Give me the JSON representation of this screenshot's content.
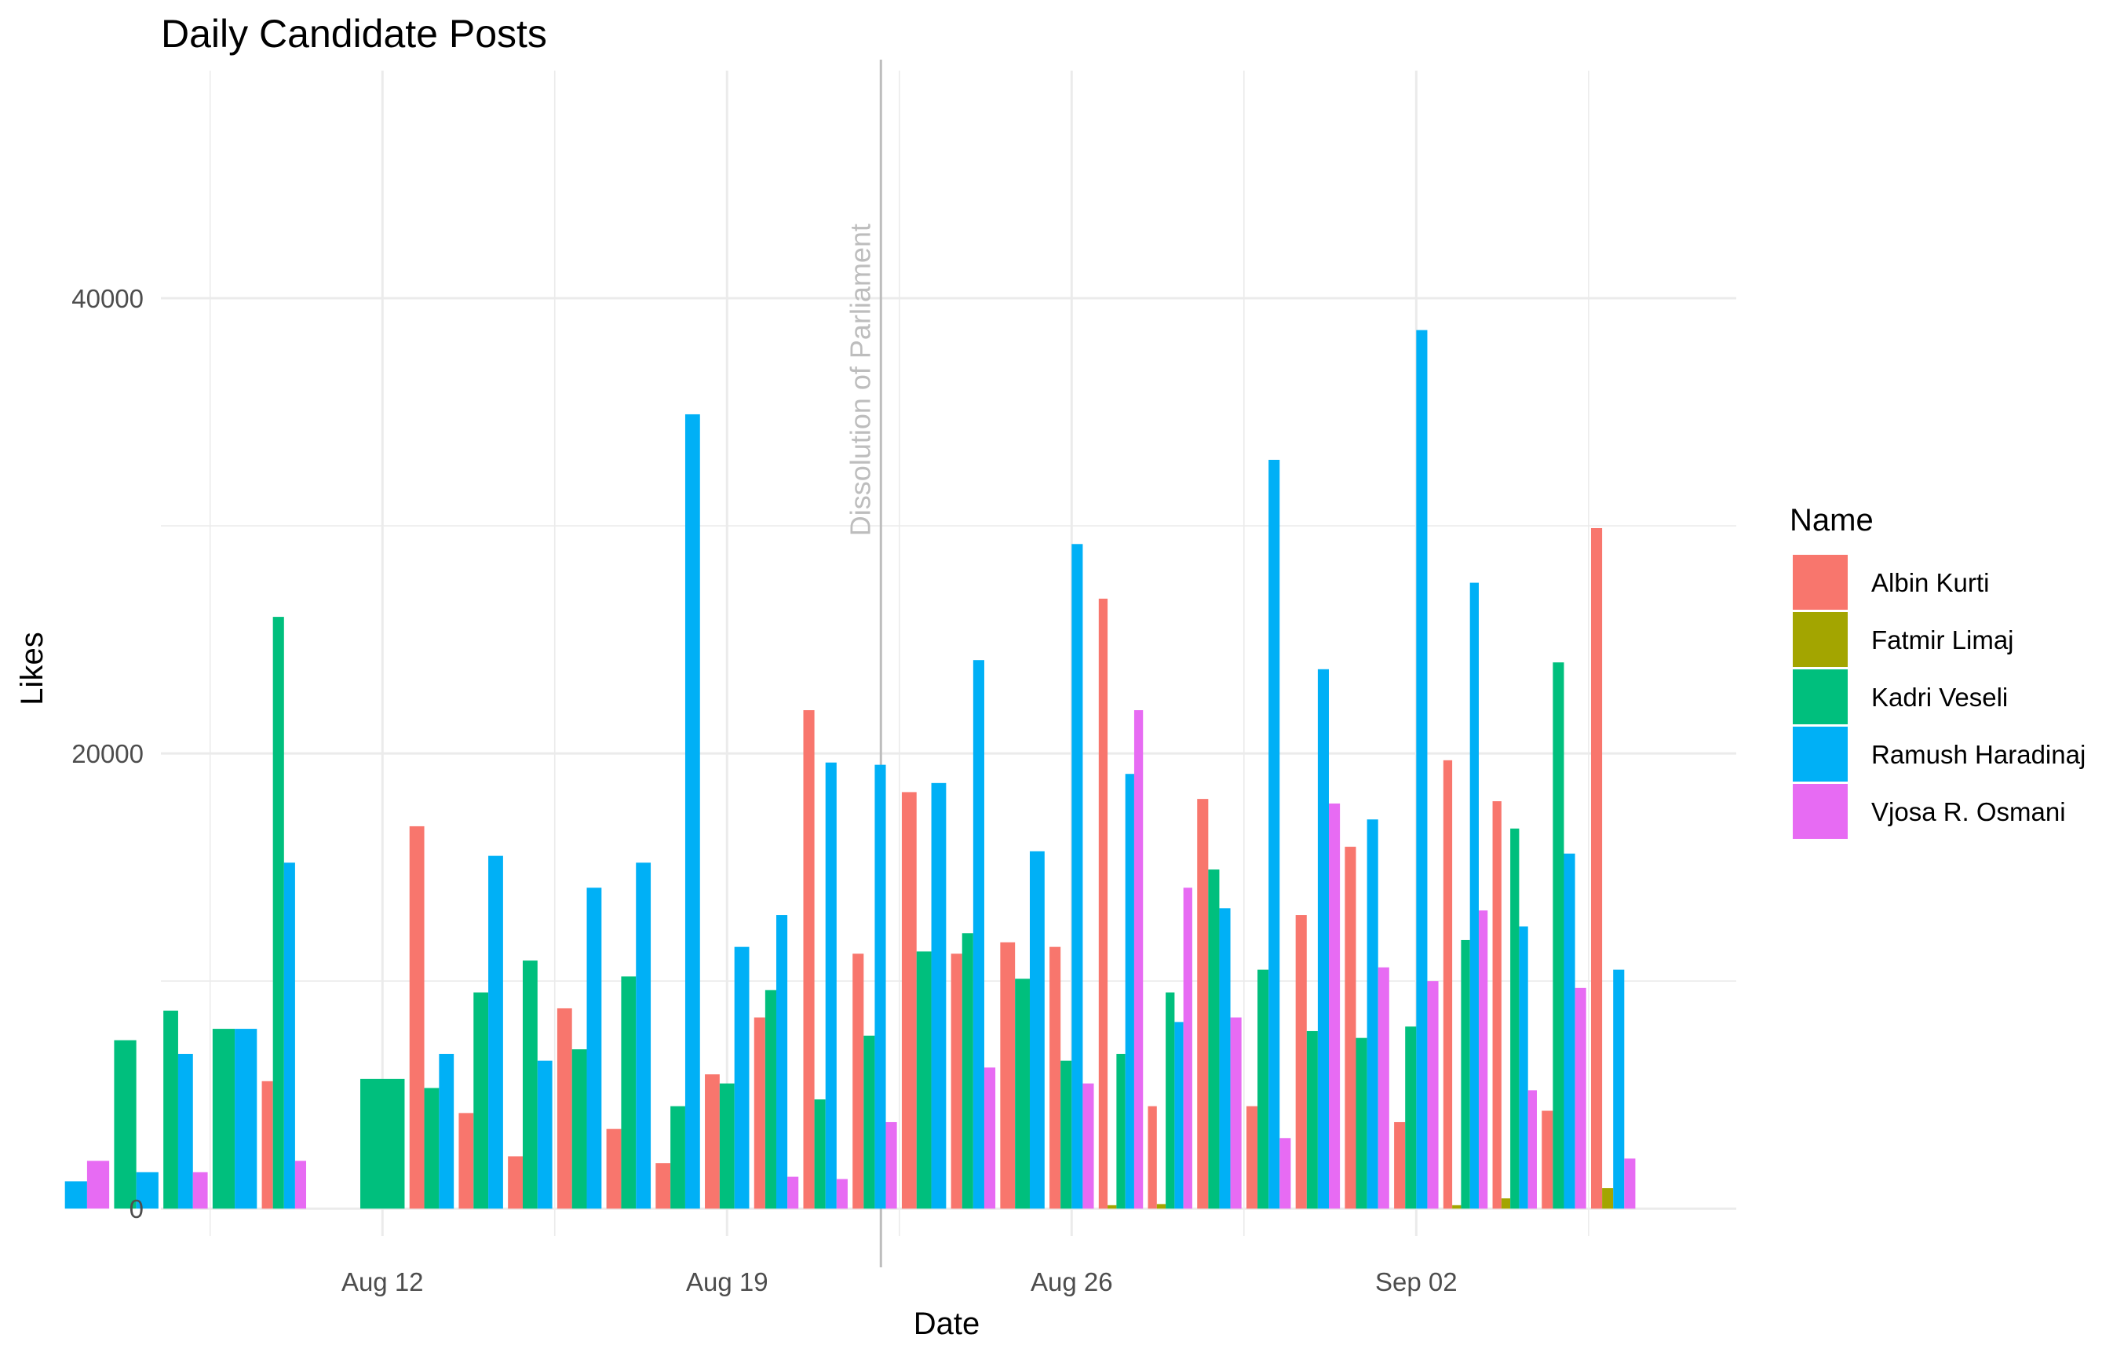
{
  "chart_data": {
    "type": "bar",
    "title": "Daily Candidate Posts",
    "xlabel": "Date",
    "ylabel": "Likes",
    "ylim": [
      -1200,
      50000
    ],
    "x_range": [
      "2019-08-07T12:00",
      "2019-09-08T12:00"
    ],
    "y_ticks": [
      0,
      20000,
      40000
    ],
    "y_tick_labels": [
      "0",
      "20000",
      "40000"
    ],
    "x_ticks": [
      "2019-08-12",
      "2019-08-19",
      "2019-08-26",
      "2019-09-02"
    ],
    "x_tick_labels": [
      "Aug 12",
      "Aug 19",
      "Aug 26",
      "Sep 02"
    ],
    "grid": true,
    "legend": {
      "title": "Name",
      "position": "right"
    },
    "annotation": {
      "text": "Dissolution of Parliament",
      "date": "2019-08-22T03:00"
    },
    "series": [
      {
        "name": "Albin Kurti",
        "color": "#F8766D",
        "points": [
          [
            "2019-08-10",
            5600
          ],
          [
            "2019-08-13",
            16800
          ],
          [
            "2019-08-14",
            4200
          ],
          [
            "2019-08-15",
            2300
          ],
          [
            "2019-08-16",
            8800
          ],
          [
            "2019-08-17",
            3500
          ],
          [
            "2019-08-18",
            2000
          ],
          [
            "2019-08-19",
            5900
          ],
          [
            "2019-08-20",
            8400
          ],
          [
            "2019-08-21",
            21900
          ],
          [
            "2019-08-22",
            11200
          ],
          [
            "2019-08-23",
            18300
          ],
          [
            "2019-08-24",
            11200
          ],
          [
            "2019-08-25",
            11700
          ],
          [
            "2019-08-26",
            11500
          ],
          [
            "2019-08-27",
            26800
          ],
          [
            "2019-08-28",
            4500
          ],
          [
            "2019-08-29",
            18000
          ],
          [
            "2019-08-30",
            4500
          ],
          [
            "2019-08-31",
            12900
          ],
          [
            "2019-09-01",
            15900
          ],
          [
            "2019-09-02",
            3800
          ],
          [
            "2019-09-03",
            19700
          ],
          [
            "2019-09-04",
            17900
          ],
          [
            "2019-09-05",
            4300
          ],
          [
            "2019-09-06",
            29900
          ]
        ]
      },
      {
        "name": "Fatmir Limaj",
        "color": "#A3A500",
        "points": [
          [
            "2019-08-27",
            150
          ],
          [
            "2019-08-28",
            200
          ],
          [
            "2019-09-03",
            150
          ],
          [
            "2019-09-04",
            450
          ],
          [
            "2019-09-06",
            900
          ]
        ]
      },
      {
        "name": "Kadri Veseli",
        "color": "#00BF7D",
        "points": [
          [
            "2019-08-07",
            7400
          ],
          [
            "2019-08-08",
            8700
          ],
          [
            "2019-08-09",
            7900
          ],
          [
            "2019-08-10",
            26000
          ],
          [
            "2019-08-12",
            5700
          ],
          [
            "2019-08-13",
            5300
          ],
          [
            "2019-08-14",
            9500
          ],
          [
            "2019-08-15",
            10900
          ],
          [
            "2019-08-16",
            7000
          ],
          [
            "2019-08-17",
            10200
          ],
          [
            "2019-08-18",
            4500
          ],
          [
            "2019-08-19",
            5500
          ],
          [
            "2019-08-20",
            9600
          ],
          [
            "2019-08-21",
            4800
          ],
          [
            "2019-08-22",
            7600
          ],
          [
            "2019-08-23",
            11300
          ],
          [
            "2019-08-24",
            12100
          ],
          [
            "2019-08-25",
            10100
          ],
          [
            "2019-08-26",
            6500
          ],
          [
            "2019-08-27",
            6800
          ],
          [
            "2019-08-28",
            9500
          ],
          [
            "2019-08-29",
            14900
          ],
          [
            "2019-08-30",
            10500
          ],
          [
            "2019-08-31",
            7800
          ],
          [
            "2019-09-01",
            7500
          ],
          [
            "2019-09-02",
            8000
          ],
          [
            "2019-09-03",
            11800
          ],
          [
            "2019-09-04",
            16700
          ],
          [
            "2019-09-05",
            24000
          ]
        ]
      },
      {
        "name": "Ramush Haradinaj",
        "color": "#00B0F6",
        "points": [
          [
            "2019-08-06",
            1200
          ],
          [
            "2019-08-07",
            1600
          ],
          [
            "2019-08-08",
            6800
          ],
          [
            "2019-08-09",
            7900
          ],
          [
            "2019-08-10",
            15200
          ],
          [
            "2019-08-13",
            6800
          ],
          [
            "2019-08-14",
            15500
          ],
          [
            "2019-08-15",
            6500
          ],
          [
            "2019-08-16",
            14100
          ],
          [
            "2019-08-17",
            15200
          ],
          [
            "2019-08-18",
            34900
          ],
          [
            "2019-08-19",
            11500
          ],
          [
            "2019-08-20",
            12900
          ],
          [
            "2019-08-21",
            19600
          ],
          [
            "2019-08-22",
            19500
          ],
          [
            "2019-08-23",
            18700
          ],
          [
            "2019-08-24",
            24100
          ],
          [
            "2019-08-25",
            15700
          ],
          [
            "2019-08-26",
            29200
          ],
          [
            "2019-08-27",
            19100
          ],
          [
            "2019-08-28",
            8200
          ],
          [
            "2019-08-29",
            13200
          ],
          [
            "2019-08-30",
            32900
          ],
          [
            "2019-08-31",
            23700
          ],
          [
            "2019-09-01",
            17100
          ],
          [
            "2019-09-02",
            38600
          ],
          [
            "2019-09-03",
            27500
          ],
          [
            "2019-09-04",
            12400
          ],
          [
            "2019-09-05",
            15600
          ],
          [
            "2019-09-06",
            10500
          ]
        ]
      },
      {
        "name": "Vjosa R. Osmani",
        "color": "#E76BF3",
        "points": [
          [
            "2019-08-06",
            2100
          ],
          [
            "2019-08-08",
            1600
          ],
          [
            "2019-08-10",
            2100
          ],
          [
            "2019-08-20",
            1400
          ],
          [
            "2019-08-21",
            1300
          ],
          [
            "2019-08-22",
            3800
          ],
          [
            "2019-08-24",
            6200
          ],
          [
            "2019-08-26",
            5500
          ],
          [
            "2019-08-27",
            21900
          ],
          [
            "2019-08-28",
            14100
          ],
          [
            "2019-08-29",
            8400
          ],
          [
            "2019-08-30",
            3100
          ],
          [
            "2019-08-31",
            17800
          ],
          [
            "2019-09-01",
            10600
          ],
          [
            "2019-09-02",
            10000
          ],
          [
            "2019-09-03",
            13100
          ],
          [
            "2019-09-04",
            5200
          ],
          [
            "2019-09-05",
            9700
          ],
          [
            "2019-09-06",
            2200
          ]
        ]
      }
    ]
  }
}
